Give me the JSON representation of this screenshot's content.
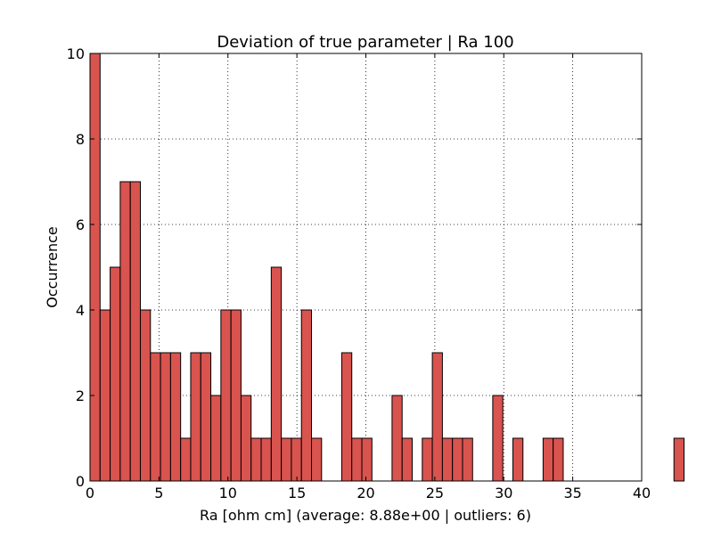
{
  "chart_data": {
    "type": "bar",
    "title": "Deviation of true parameter | Ra 100",
    "xlabel": "Ra [ohm cm] (average: 8.88e+00 | outliers: 6)",
    "ylabel": "Occurrence",
    "xlim": [
      0,
      40
    ],
    "ylim": [
      0,
      10
    ],
    "xticks": [
      "0",
      "5",
      "10",
      "15",
      "20",
      "25",
      "30",
      "35",
      "40"
    ],
    "yticks": [
      "0",
      "2",
      "4",
      "6",
      "8",
      "10"
    ],
    "grid": true,
    "bar_color": "#d9534f",
    "edge_color": "#000000",
    "bin_width": 0.73,
    "values": [
      10,
      4,
      5,
      7,
      7,
      4,
      3,
      3,
      3,
      1,
      3,
      3,
      2,
      4,
      4,
      2,
      1,
      1,
      5,
      1,
      1,
      4,
      1,
      0,
      0,
      3,
      1,
      1,
      0,
      0,
      2,
      1,
      0,
      1,
      3,
      1,
      1,
      1,
      0,
      0,
      2,
      0,
      1,
      0,
      0,
      1,
      1,
      0,
      0,
      0,
      0,
      0,
      0,
      0,
      0,
      0,
      0,
      0,
      1
    ]
  }
}
